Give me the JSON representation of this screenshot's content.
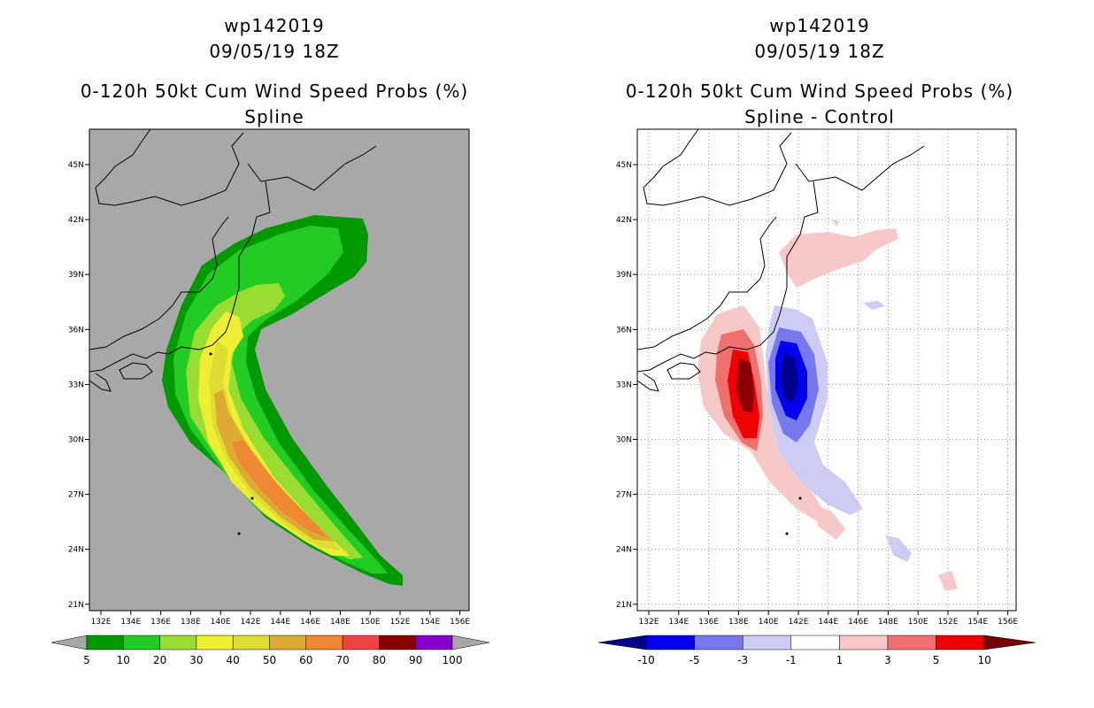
{
  "left_panel": {
    "storm_id": "wp142019",
    "datetime": "09/05/19 18Z",
    "product": "0-120h 50kt Cum Wind Speed Probs (%)",
    "subtitle": "Spline",
    "legend_values": [
      "5",
      "10",
      "20",
      "30",
      "40",
      "50",
      "60",
      "70",
      "80",
      "90",
      "100"
    ],
    "legend_colors": [
      "#009900",
      "#22cc22",
      "#99dd33",
      "#eeee33",
      "#dddd33",
      "#ddaa33",
      "#ee8833",
      "#ee4444",
      "#880000",
      "#8800cc"
    ],
    "background_color": "#a8a8a8"
  },
  "right_panel": {
    "storm_id": "wp142019",
    "datetime": "09/05/19 18Z",
    "product": "0-120h 50kt Cum Wind Speed Probs (%)",
    "subtitle": "Spline - Control",
    "legend_values": [
      "-10",
      "-5",
      "-3",
      "-1",
      "1",
      "3",
      "5",
      "10"
    ],
    "legend_colors": [
      "#0000ee",
      "#7777ee",
      "#ccccf5",
      "#ffffff",
      "#f7c8c8",
      "#f07070",
      "#ee0000"
    ],
    "low_arrow_color": "#000088",
    "high_arrow_color": "#770000",
    "background_color": "#ffffff"
  },
  "axes": {
    "lon_labels": [
      "132E",
      "134E",
      "136E",
      "138E",
      "140E",
      "142E",
      "144E",
      "146E",
      "148E",
      "150E",
      "152E",
      "154E",
      "156E"
    ],
    "lat_labels": [
      "45N",
      "42N",
      "39N",
      "36N",
      "33N",
      "30N",
      "27N",
      "24N",
      "21N"
    ],
    "lon_values": [
      132,
      134,
      136,
      138,
      140,
      142,
      144,
      146,
      148,
      150,
      152,
      154,
      156
    ],
    "lat_values": [
      45,
      42,
      39,
      36,
      33,
      30,
      27,
      24,
      21
    ]
  }
}
